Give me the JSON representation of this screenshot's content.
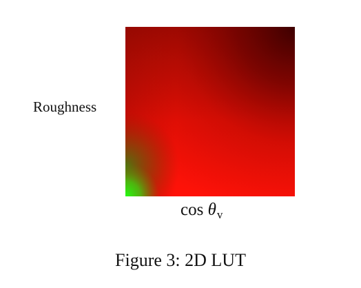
{
  "figure": {
    "y_axis_label": "Roughness",
    "x_axis_label": {
      "function": "cos",
      "symbol": "θ",
      "subscript": "v"
    },
    "caption": "Figure 3:  2D LUT"
  },
  "colors": {
    "red_bright": "#ff1208",
    "red_dark": "#4a0000",
    "green": "#22ff10",
    "olive": "#4a7a10",
    "background": "#ffffff"
  }
}
